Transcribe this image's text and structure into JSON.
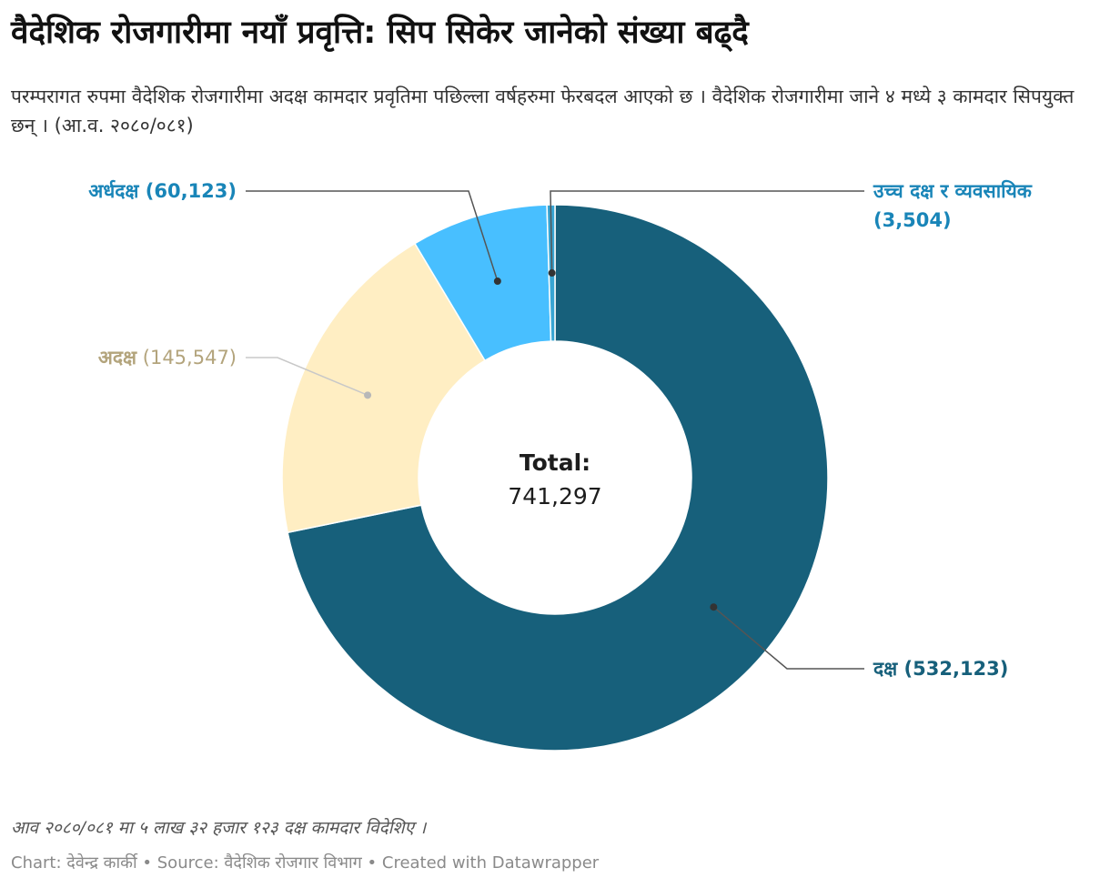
{
  "title": "वैदेशिक रोजगारीमा नयाँ प्रवृत्ति: सिप सिकेर जानेको संख्या बढ्दै",
  "subtitle": "परम्परागत रुपमा वैदेशिक रोजगारीमा अदक्ष कामदार प्रवृतिमा पछिल्ला वर्षहरुमा फेरबदल आएको छ । वैदेशिक रोजगारीमा जाने ४ मध्ये ३ कामदार सिपयुक्त छन् । (आ.व. २०८०/०८१)",
  "note": "आव २०८०/०८१ मा ५ लाख ३२ हजार १२३ दक्ष कामदार विदेशिए ।",
  "footer": {
    "chart_label": "Chart:",
    "author": "देवेन्द्र कार्की",
    "sep1": "•",
    "source_label": "Source:",
    "source": "वैदेशिक रोजगार विभाग",
    "sep2": "•",
    "credit": "Created with Datawrapper"
  },
  "chart_data": {
    "type": "pie",
    "variant": "donut",
    "center_label": "Total:",
    "center_value": "741,297",
    "total": 741297,
    "start": "top",
    "direction": "clockwise",
    "slices": [
      {
        "name": "दक्ष",
        "value": 532123,
        "value_label": "(532,123)",
        "color": "#17607b",
        "label_color": "#17607b",
        "label_side": "right"
      },
      {
        "name": "अदक्ष",
        "value": 145547,
        "value_label": "(145,547)",
        "color": "#ffeec3",
        "label_color": "#b3a47c",
        "label_side": "left"
      },
      {
        "name": "अर्धदक्ष",
        "value": 60123,
        "value_label": "(60,123)",
        "color": "#48bfff",
        "label_color": "#1985b8",
        "label_side": "left"
      },
      {
        "name": "उच्च दक्ष र व्यवसायिक",
        "value": 3504,
        "value_label": "(3,504)",
        "color": "#38a5d3",
        "label_color": "#1985b8",
        "label_side": "right"
      }
    ]
  }
}
